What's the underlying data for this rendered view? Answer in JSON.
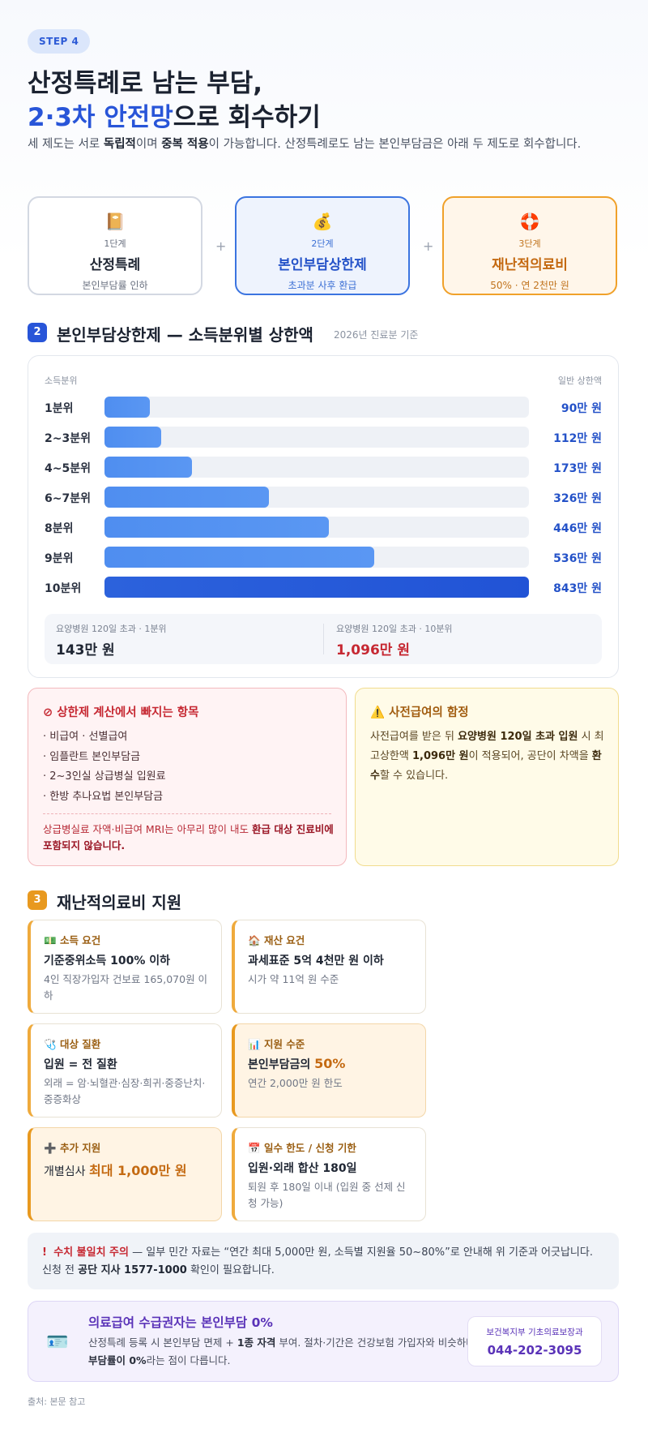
{
  "step": "STEP 4",
  "title": {
    "line1": "산정특례로 남는 부담,",
    "line2_blue": "2·3차 안전망",
    "line2_rest": "으로 회수하기"
  },
  "intro": {
    "p1": "세 제도는 서로 ",
    "b1": "독립적",
    "p2": "이며 ",
    "b2": "중복 적용",
    "p3": "이 가능합니다. 산정특례로도 남는 본인부담금은 아래 두 제도로 회수합니다."
  },
  "stages": [
    {
      "icon": "📔",
      "level": "1단계",
      "name": "산정특례",
      "sub": "본인부담률 인하"
    },
    {
      "icon": "💰",
      "level": "2단계",
      "name": "본인부담상한제",
      "sub": "초과분 사후 환급"
    },
    {
      "icon": "🛟",
      "level": "3단계",
      "name": "재난적의료비",
      "sub": "50% · 연 2천만 원"
    }
  ],
  "plus": "+",
  "section2": {
    "num": "2",
    "title": "본인부담상한제 — 소득분위별 상한액",
    "note": "2026년 진료분 기준",
    "col_left": "소득분위",
    "col_right": "일반 상한액"
  },
  "chart_data": {
    "type": "bar",
    "categories": [
      "1분위",
      "2~3분위",
      "4~5분위",
      "6~7분위",
      "8분위",
      "9분위",
      "10분위"
    ],
    "values": [
      90,
      112,
      173,
      326,
      446,
      536,
      843
    ],
    "value_labels": [
      "90만 원",
      "112만 원",
      "173만 원",
      "326만 원",
      "446만 원",
      "536만 원",
      "843만 원"
    ],
    "unit": "만 원",
    "xlabel": "소득분위",
    "ylabel": "일반 상한액",
    "ylim": [
      0,
      843
    ],
    "orientation": "horizontal",
    "highlight_color": "#2153d6",
    "bar_color": "#4f8ef0"
  },
  "nursing": [
    {
      "label": "요양병원 120일 초과 · 1분위",
      "value": "143만 원",
      "color": "#1f2633"
    },
    {
      "label": "요양병원 120일 초과 · 10분위",
      "value": "1,096만 원",
      "color": "#c62832"
    }
  ],
  "exclusions": {
    "icon": "⊘",
    "title": "상한제 계산에서 빠지는 항목",
    "items": [
      "· 비급여 · 선별급여",
      "· 임플란트 본인부담금",
      "· 2~3인실 상급병실 입원료",
      "· 한방 추나요법 본인부담금"
    ],
    "note_plain": "상급병실료 자액·비급여 MRI는 아무리 많이 내도 ",
    "note_bold": "환급 대상 진료비에 포함되지 않습니다."
  },
  "trap": {
    "icon": "⚠️",
    "title": "사전급여의 함정",
    "p1": "사전급여를 받은 뒤 ",
    "b1": "요양병원 120일 초과 입원",
    "p2": " 시 최고상한액 ",
    "b2": "1,096만 원",
    "p3": "이 적용되어, 공단이 차액을 ",
    "b3": "환수",
    "p4": "할 수 있습니다."
  },
  "section3": {
    "num": "3",
    "title": "재난적의료비 지원"
  },
  "support": [
    {
      "icon": "💵",
      "head": "소득 요건",
      "main": "기준중위소득 100% 이하",
      "sub": "4인 직장가입자 건보료 165,070원 이하"
    },
    {
      "icon": "🏠",
      "head": "재산 요건",
      "main": "과세표준 5억 4천만 원 이하",
      "sub": "시가 약 11억 원 수준"
    },
    {
      "icon": "🩺",
      "head": "대상 질환",
      "main": "입원 = 전 질환",
      "sub": "외래 = 암·뇌혈관·심장·희귀·중증난치·중증화상"
    },
    {
      "icon": "📊",
      "head": "지원 수준",
      "main_pre": "본인부담금의 ",
      "main_hl": "50%",
      "sub": "연간 2,000만 원 한도"
    },
    {
      "icon": "➕",
      "head": "추가 지원",
      "main_pre": "개별심사 ",
      "main_hl": "최대 1,000만 원",
      "sub": ""
    },
    {
      "icon": "📅",
      "head": "일수 한도 / 신청 기한",
      "main": "입원·외래 합산 180일",
      "sub": "퇴원 후 180일 이내 (입원 중 선제 신청 가능)"
    }
  ],
  "mismatch": {
    "icon": "!",
    "title": "수치 불일치 주의",
    "p1": " — 일부 민간 자료는 “연간 최대 5,000만 원, 소득별 지원율 50~80%”로 안내해 위 기준과 어긋납니다. 신청 전 ",
    "b1": "공단 지사 1577-1000",
    "p2": " 확인이 필요합니다."
  },
  "medaid": {
    "icon": "🪪",
    "title": "의료급여 수급권자는 본인부담 0%",
    "p1": "산정특례 등록 시 본인부담 면제 + ",
    "b1": "1종 자격",
    "p2": " 부여. 절차·기간은 건강보험 가입자와 비슷하나 ",
    "b2": "부담률이 0%",
    "p3": "라는 점이 다릅니다.",
    "contact_label": "보건복지부 기초의료보장과",
    "contact_number": "044-202-3095"
  },
  "source": "출처: 본문 참고"
}
